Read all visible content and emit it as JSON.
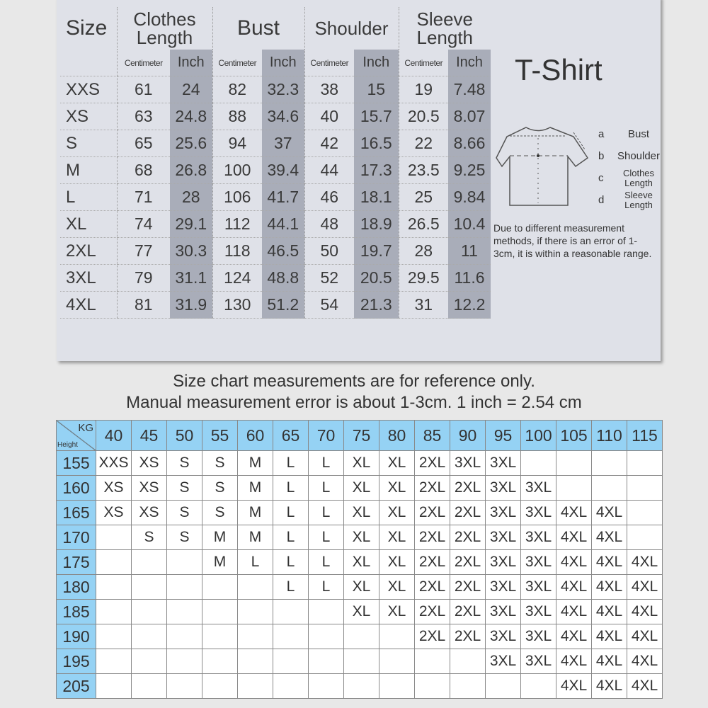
{
  "size_chart": {
    "headers": {
      "size": "Size",
      "clothes_length": "Clothes Length",
      "bust": "Bust",
      "shoulder": "Shoulder",
      "sleeve_length": "Sleeve Length"
    },
    "units": {
      "cm": "Centimeter",
      "inch": "Inch"
    },
    "rows": [
      [
        "XXS",
        "61",
        "24",
        "82",
        "32.3",
        "38",
        "15",
        "19",
        "7.48"
      ],
      [
        "XS",
        "63",
        "24.8",
        "88",
        "34.6",
        "40",
        "15.7",
        "20.5",
        "8.07"
      ],
      [
        "S",
        "65",
        "25.6",
        "94",
        "37",
        "42",
        "16.5",
        "22",
        "8.66"
      ],
      [
        "M",
        "68",
        "26.8",
        "100",
        "39.4",
        "44",
        "17.3",
        "23.5",
        "9.25"
      ],
      [
        "L",
        "71",
        "28",
        "106",
        "41.7",
        "46",
        "18.1",
        "25",
        "9.84"
      ],
      [
        "XL",
        "74",
        "29.1",
        "112",
        "44.1",
        "48",
        "18.9",
        "26.5",
        "10.4"
      ],
      [
        "2XL",
        "77",
        "30.3",
        "118",
        "46.5",
        "50",
        "19.7",
        "28",
        "11"
      ],
      [
        "3XL",
        "79",
        "31.1",
        "124",
        "48.8",
        "52",
        "20.5",
        "29.5",
        "11.6"
      ],
      [
        "4XL",
        "81",
        "31.9",
        "130",
        "51.2",
        "54",
        "21.3",
        "31",
        "12.2"
      ]
    ]
  },
  "garment": {
    "title": "T-Shirt",
    "legend": [
      {
        "key": "a",
        "label": "Bust"
      },
      {
        "key": "b",
        "label": "Shoulder"
      },
      {
        "key": "c",
        "label": "Clothes Length"
      },
      {
        "key": "d",
        "label": "Sleeve Length"
      }
    ],
    "note": "Due to different measurement methods, if there is an error of 1-3cm, it is within a reasonable range."
  },
  "captions": [
    "Size chart measurements are for reference only.",
    "Manual measurement error is about 1-3cm. 1 inch = 2.54 cm"
  ],
  "height_weight": {
    "corner_kg": "KG",
    "corner_height": "Height",
    "weights": [
      "40",
      "45",
      "50",
      "55",
      "60",
      "65",
      "70",
      "75",
      "80",
      "85",
      "90",
      "95",
      "100",
      "105",
      "110",
      "115"
    ],
    "rows": [
      {
        "height": "155",
        "sizes": [
          "XXS",
          "XS",
          "S",
          "S",
          "M",
          "L",
          "L",
          "XL",
          "XL",
          "2XL",
          "3XL",
          "3XL",
          "",
          "",
          "",
          ""
        ]
      },
      {
        "height": "160",
        "sizes": [
          "XS",
          "XS",
          "S",
          "S",
          "M",
          "L",
          "L",
          "XL",
          "XL",
          "2XL",
          "2XL",
          "3XL",
          "3XL",
          "",
          "",
          ""
        ]
      },
      {
        "height": "165",
        "sizes": [
          "XS",
          "XS",
          "S",
          "S",
          "M",
          "L",
          "L",
          "XL",
          "XL",
          "2XL",
          "2XL",
          "3XL",
          "3XL",
          "4XL",
          "4XL",
          ""
        ]
      },
      {
        "height": "170",
        "sizes": [
          "",
          "S",
          "S",
          "M",
          "M",
          "L",
          "L",
          "XL",
          "XL",
          "2XL",
          "2XL",
          "3XL",
          "3XL",
          "4XL",
          "4XL",
          ""
        ]
      },
      {
        "height": "175",
        "sizes": [
          "",
          "",
          "",
          "M",
          "L",
          "L",
          "L",
          "XL",
          "XL",
          "2XL",
          "2XL",
          "3XL",
          "3XL",
          "4XL",
          "4XL",
          "4XL"
        ]
      },
      {
        "height": "180",
        "sizes": [
          "",
          "",
          "",
          "",
          "",
          "L",
          "L",
          "XL",
          "XL",
          "2XL",
          "2XL",
          "3XL",
          "3XL",
          "4XL",
          "4XL",
          "4XL"
        ]
      },
      {
        "height": "185",
        "sizes": [
          "",
          "",
          "",
          "",
          "",
          "",
          "",
          "XL",
          "XL",
          "2XL",
          "2XL",
          "3XL",
          "3XL",
          "4XL",
          "4XL",
          "4XL"
        ]
      },
      {
        "height": "190",
        "sizes": [
          "",
          "",
          "",
          "",
          "",
          "",
          "",
          "",
          "",
          "2XL",
          "2XL",
          "3XL",
          "3XL",
          "4XL",
          "4XL",
          "4XL"
        ]
      },
      {
        "height": "195",
        "sizes": [
          "",
          "",
          "",
          "",
          "",
          "",
          "",
          "",
          "",
          "",
          "",
          "3XL",
          "3XL",
          "4XL",
          "4XL",
          "4XL"
        ]
      },
      {
        "height": "205",
        "sizes": [
          "",
          "",
          "",
          "",
          "",
          "",
          "",
          "",
          "",
          "",
          "",
          "",
          "",
          "4XL",
          "4XL",
          "4XL"
        ]
      }
    ]
  },
  "colors": {
    "panel": "#dfe1e8",
    "inch_column": "#a9adb9",
    "header_blue": "#95d2f4"
  }
}
